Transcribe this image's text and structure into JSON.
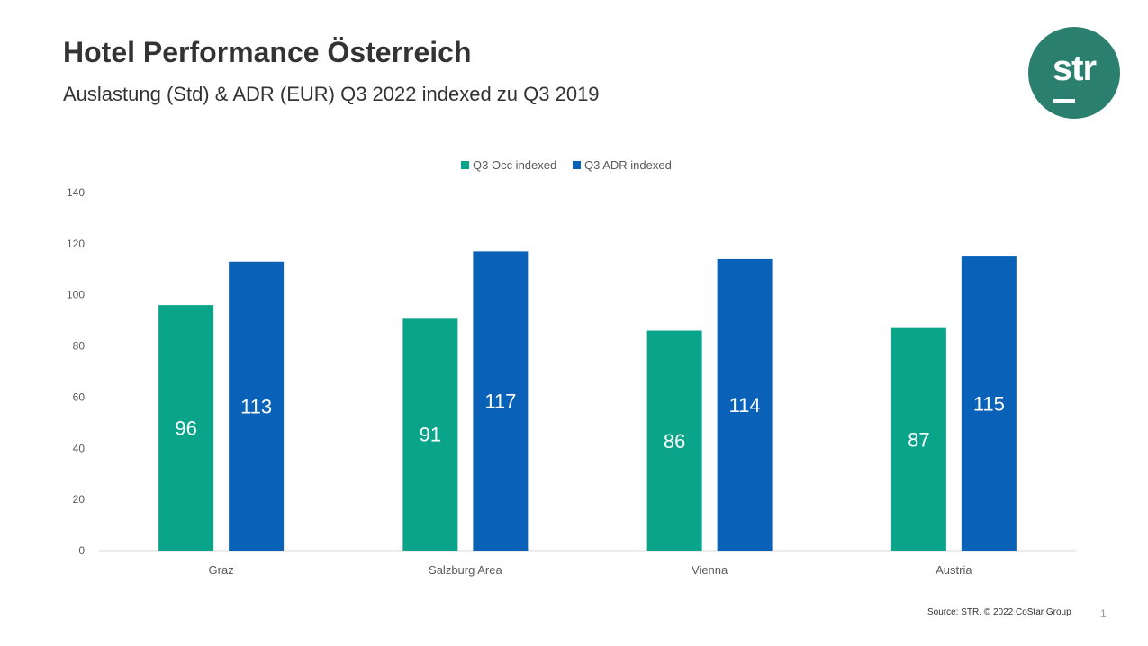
{
  "header": {
    "title": "Hotel Performance Österreich",
    "subtitle": "Auslastung (Std) & ADR (EUR) Q3 2022 indexed zu Q3 2019"
  },
  "logo": {
    "text": "str",
    "color": "#2b7f6e"
  },
  "footer": {
    "source": "Source: STR. © 2022 CoStar Group",
    "page_number": "1"
  },
  "chart_data": {
    "type": "bar",
    "categories": [
      "Graz",
      "Salzburg Area",
      "Vienna",
      "Austria"
    ],
    "series": [
      {
        "name": "Q3 Occ indexed",
        "values": [
          96,
          91,
          86,
          87
        ],
        "color": "#0aa48a"
      },
      {
        "name": "Q3 ADR indexed",
        "values": [
          113,
          117,
          114,
          115
        ],
        "color": "#0a62b8"
      }
    ],
    "ylim": [
      0,
      140
    ],
    "yticks": [
      0,
      20,
      40,
      60,
      80,
      100,
      120,
      140
    ],
    "grid": false,
    "legend": "top-center",
    "data_labels": true
  }
}
